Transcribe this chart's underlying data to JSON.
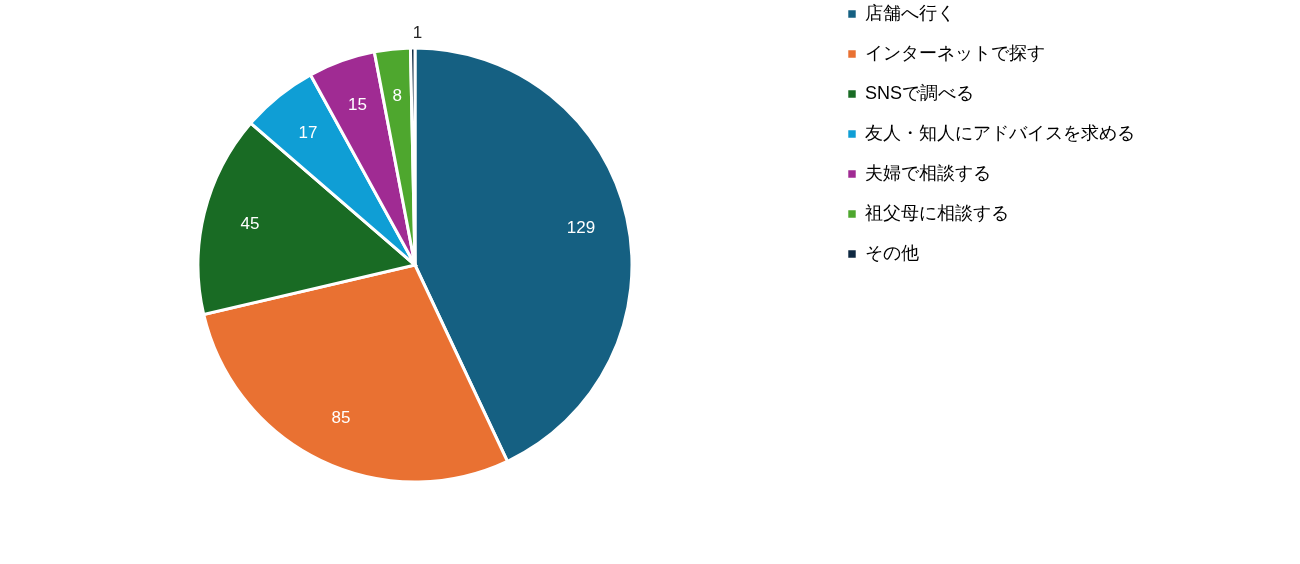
{
  "chart_data": {
    "type": "pie",
    "categories": [
      "店舗へ行く",
      "インターネットで探す",
      "SNSで調べる",
      "友人・知人にアドバイスを求める",
      "夫婦で相談する",
      "祖父母に相談する",
      "その他"
    ],
    "values": [
      129,
      85,
      45,
      17,
      15,
      8,
      1
    ],
    "colors": [
      "#156082",
      "#e97132",
      "#196b24",
      "#0f9ed5",
      "#a02b93",
      "#4ea72e",
      "#0e2841"
    ],
    "data_labels": true,
    "legend": "right"
  }
}
